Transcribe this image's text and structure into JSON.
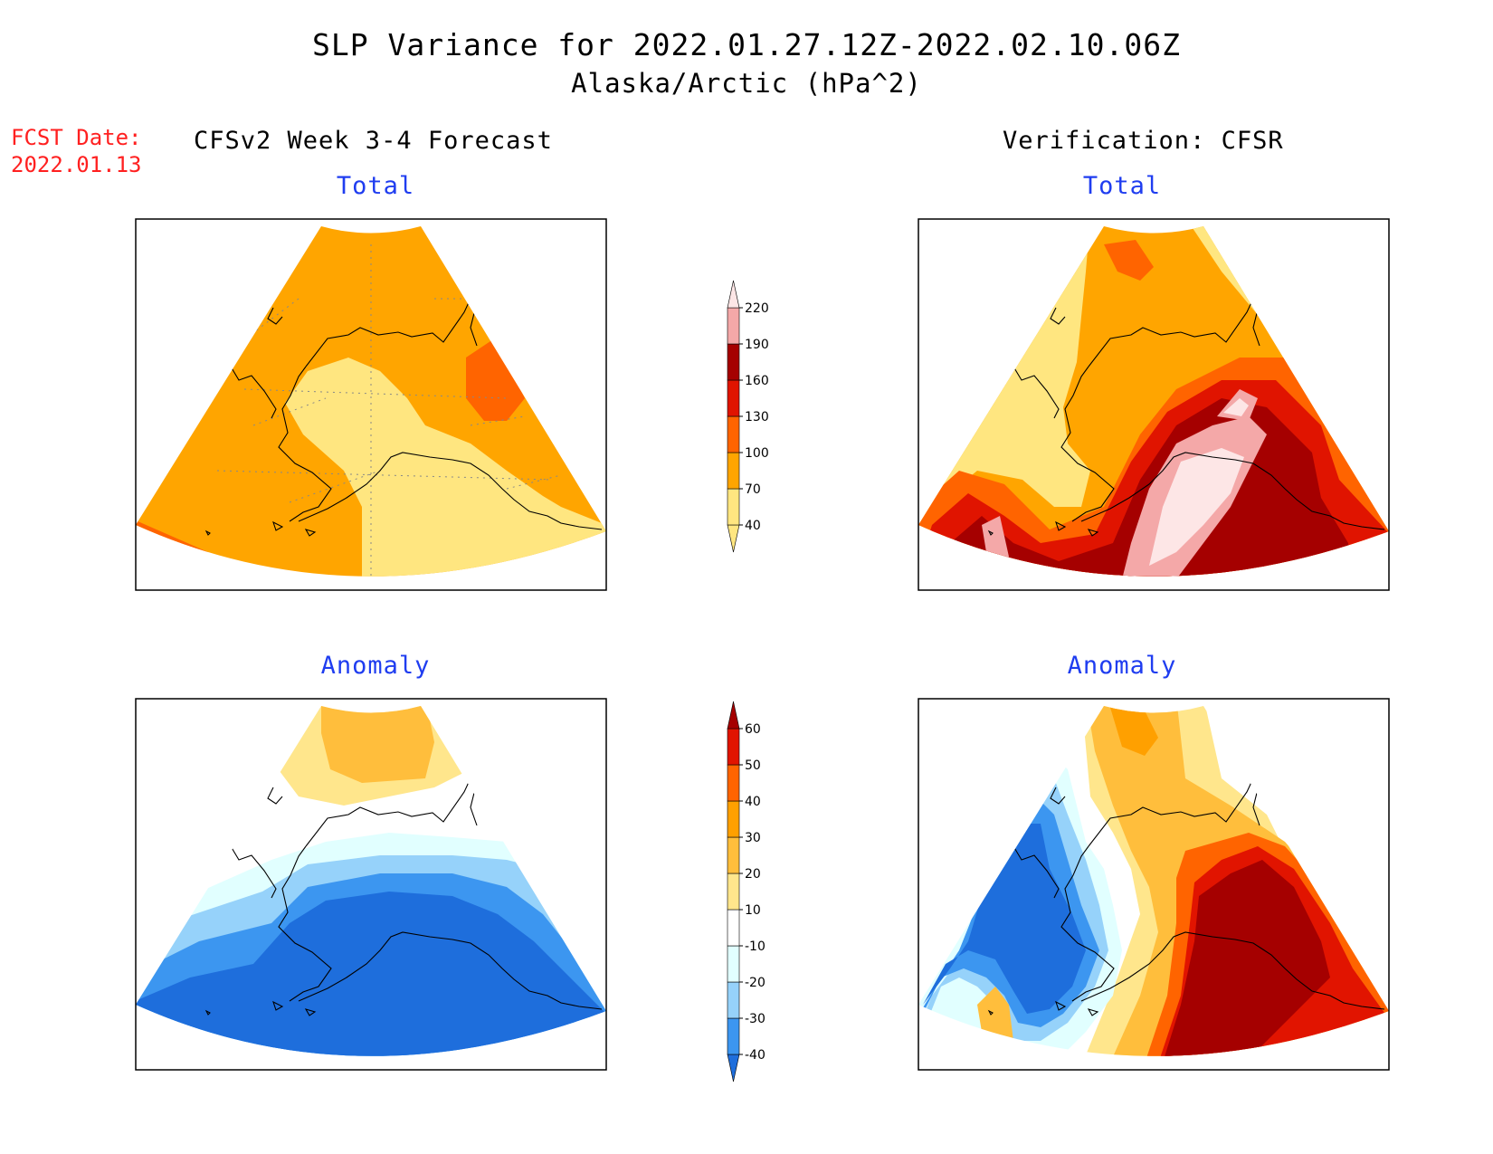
{
  "header": {
    "title": "SLP Variance for 2022.01.27.12Z-2022.02.10.06Z",
    "subtitle": "Alaska/Arctic (hPa^2)"
  },
  "fcst_date": {
    "label": "FCST Date:",
    "value": "2022.01.13"
  },
  "columns": {
    "left": "CFSv2 Week 3-4 Forecast",
    "right": "Verification: CFSR"
  },
  "panels": {
    "forecast_total": "Total",
    "verification_total": "Total",
    "forecast_anomaly": "Anomaly",
    "verification_anomaly": "Anomaly"
  },
  "colorbars": {
    "total": {
      "ticks": [
        "40",
        "70",
        "100",
        "130",
        "160",
        "190",
        "220"
      ],
      "colors": [
        "#ffe680",
        "#ffa500",
        "#ff6400",
        "#e01400",
        "#a50000",
        "#f4a8a8",
        "#fde6e6"
      ]
    },
    "anomaly": {
      "ticks": [
        "-40",
        "-30",
        "-20",
        "-10",
        "10",
        "20",
        "30",
        "40",
        "50",
        "60"
      ],
      "colors": [
        "#1e6edc",
        "#3c96f0",
        "#96d2fa",
        "#e1ffff",
        "#ffffff",
        "#ffe68c",
        "#ffbe3c",
        "#ffa000",
        "#ff6400",
        "#e11400",
        "#a50000"
      ]
    }
  },
  "palette": {
    "yellow": "#ffe680",
    "orange": "#ffa500",
    "dark_orange": "#ff6400",
    "red": "#e01400",
    "dark_red": "#a50000",
    "pink": "#f4a8a8",
    "light_pink": "#fde6e6",
    "blue_dark": "#1e6edc",
    "blue": "#3c96f0",
    "blue_light": "#96d2fa",
    "blue_pale": "#e1ffff",
    "anom_yellow": "#ffe68c",
    "anom_orange": "#ffbe3c",
    "title_blue": "#1f3df0",
    "fcst_red": "#ff2020"
  }
}
